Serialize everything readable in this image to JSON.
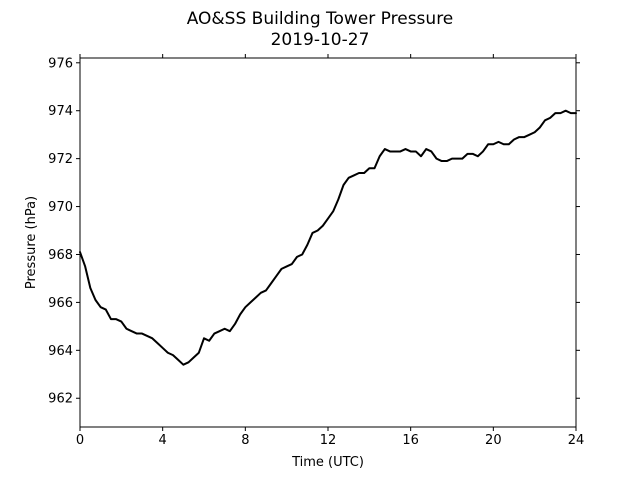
{
  "chart_data": {
    "type": "line",
    "title": "AO&SS Building Tower Pressure",
    "subtitle": "2019-10-27",
    "xlabel": "Time (UTC)",
    "ylabel": "Pressure (hPa)",
    "xlim": [
      0,
      24
    ],
    "ylim": [
      960.8,
      976.2
    ],
    "xticks": [
      0,
      4,
      8,
      12,
      16,
      20,
      24
    ],
    "yticks": [
      962,
      964,
      966,
      968,
      970,
      972,
      974,
      976
    ],
    "grid": false,
    "line_color": "#000000",
    "series": [
      {
        "x": [
          0,
          0.25,
          0.5,
          0.75,
          1.0,
          1.25,
          1.5,
          1.75,
          2.0,
          2.25,
          2.5,
          2.75,
          3.0,
          3.25,
          3.5,
          3.75,
          4.0,
          4.25,
          4.5,
          4.75,
          5.0,
          5.25,
          5.5,
          5.75,
          6.0,
          6.25,
          6.5,
          6.75,
          7.0,
          7.25,
          7.5,
          7.75,
          8.0,
          8.25,
          8.5,
          8.75,
          9.0,
          9.25,
          9.5,
          9.75,
          10.0,
          10.25,
          10.5,
          10.75,
          11.0,
          11.25,
          11.5,
          11.75,
          12.0,
          12.25,
          12.5,
          12.75,
          13.0,
          13.25,
          13.5,
          13.75,
          14.0,
          14.25,
          14.5,
          14.75,
          15.0,
          15.25,
          15.5,
          15.75,
          16.0,
          16.25,
          16.5,
          16.75,
          17.0,
          17.25,
          17.5,
          17.75,
          18.0,
          18.25,
          18.5,
          18.75,
          19.0,
          19.25,
          19.5,
          19.75,
          20.0,
          20.25,
          20.5,
          20.75,
          21.0,
          21.25,
          21.5,
          21.75,
          22.0,
          22.25,
          22.5,
          22.75,
          23.0,
          23.25,
          23.5,
          23.75,
          24.0
        ],
        "values": [
          968.1,
          967.5,
          966.6,
          966.1,
          965.8,
          965.7,
          965.3,
          965.3,
          965.2,
          964.9,
          964.8,
          964.7,
          964.7,
          964.6,
          964.5,
          964.3,
          964.1,
          963.9,
          963.8,
          963.6,
          963.4,
          963.5,
          963.7,
          963.9,
          964.5,
          964.4,
          964.7,
          964.8,
          964.9,
          964.8,
          965.1,
          965.5,
          965.8,
          966.0,
          966.2,
          966.4,
          966.5,
          966.8,
          967.1,
          967.4,
          967.5,
          967.6,
          967.9,
          968.0,
          968.4,
          968.9,
          969.0,
          969.2,
          969.5,
          969.8,
          970.3,
          970.9,
          971.2,
          971.3,
          971.4,
          971.4,
          971.6,
          971.6,
          972.1,
          972.4,
          972.3,
          972.3,
          972.3,
          972.4,
          972.3,
          972.3,
          972.1,
          972.4,
          972.3,
          972.0,
          971.9,
          971.9,
          972.0,
          972.0,
          972.0,
          972.2,
          972.2,
          972.1,
          972.3,
          972.6,
          972.6,
          972.7,
          972.6,
          972.6,
          972.8,
          972.9,
          972.9,
          973.0,
          973.1,
          973.3,
          973.6,
          973.7,
          973.9,
          973.9,
          974.0,
          973.9,
          973.9
        ]
      }
    ]
  }
}
